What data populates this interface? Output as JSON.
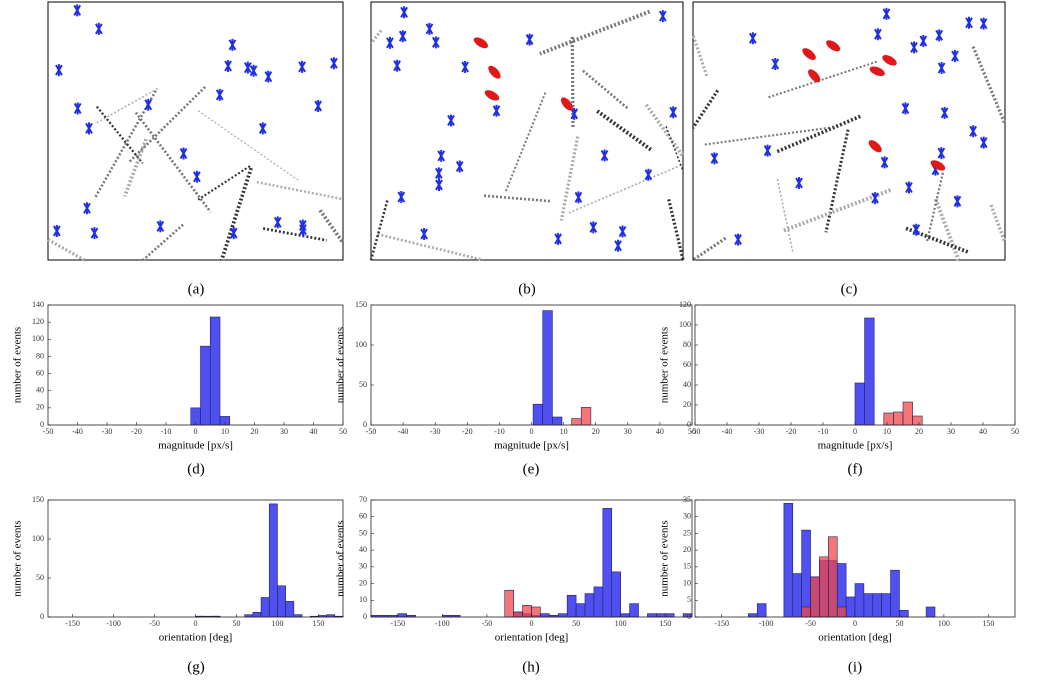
{
  "captions": [
    "(a)",
    "(b)",
    "(c)",
    "(d)",
    "(e)",
    "(f)",
    "(g)",
    "(h)",
    "(i)"
  ],
  "chart_data": [
    {
      "type": "histogram",
      "xlabel": "magnitude [px/s]",
      "ylabel": "number of events",
      "xlim": [
        -50,
        50
      ],
      "xticks": [
        -50,
        -40,
        -30,
        -20,
        -10,
        0,
        10,
        20,
        30,
        40,
        50
      ],
      "ylim": [
        0,
        140
      ],
      "yticks": [
        0,
        20,
        40,
        60,
        80,
        100,
        120,
        140
      ],
      "series": [
        {
          "color": "#5050f0",
          "bins": [
            -1.6,
            1.7,
            5,
            8.3,
            11.6
          ],
          "values": [
            20,
            92,
            126,
            10
          ]
        }
      ]
    },
    {
      "type": "histogram",
      "xlabel": "magnitude [px/s]",
      "ylabel": "number of events",
      "xlim": [
        -50,
        50
      ],
      "xticks": [
        -50,
        -40,
        -30,
        -20,
        -10,
        0,
        10,
        20,
        30,
        40,
        50
      ],
      "ylim": [
        0,
        150
      ],
      "yticks": [
        0,
        50,
        100,
        150
      ],
      "series": [
        {
          "color": "#5050f0",
          "bins": [
            0.5,
            3.5,
            6.5,
            9.5
          ],
          "values": [
            26,
            143,
            10
          ]
        },
        {
          "color": "#f04848",
          "bins": [
            12.5,
            15.5,
            18.5
          ],
          "values": [
            8,
            22
          ]
        }
      ]
    },
    {
      "type": "histogram",
      "xlabel": "magnitude [px/s]",
      "ylabel": "number of events",
      "xlim": [
        -50,
        50
      ],
      "xticks": [
        -50,
        -40,
        -30,
        -20,
        -10,
        0,
        10,
        20,
        30,
        40,
        50
      ],
      "ylim": [
        0,
        120
      ],
      "yticks": [
        0,
        20,
        40,
        60,
        80,
        100,
        120
      ],
      "series": [
        {
          "color": "#5050f0",
          "bins": [
            0,
            3,
            6
          ],
          "values": [
            42,
            107
          ]
        },
        {
          "color": "#f04848",
          "bins": [
            9,
            12,
            15,
            18,
            21
          ],
          "values": [
            12,
            13,
            23,
            9
          ]
        }
      ]
    },
    {
      "type": "histogram",
      "xlabel": "orientation [deg]",
      "ylabel": "number of events",
      "xlim": [
        -180,
        180
      ],
      "xticks": [
        -150,
        -100,
        -50,
        0,
        50,
        100,
        150
      ],
      "ylim": [
        0,
        150
      ],
      "yticks": [
        0,
        50,
        100,
        150
      ],
      "series": [
        {
          "color": "#5050f0",
          "bins": [
            0,
            10,
            20,
            30,
            40,
            50,
            60,
            70,
            80,
            90,
            100,
            110,
            120,
            130,
            140,
            150,
            160,
            170,
            180
          ],
          "values": [
            1,
            0,
            1,
            0,
            0,
            0,
            3,
            6,
            25,
            145,
            40,
            20,
            3,
            0,
            1,
            2,
            3,
            1
          ]
        },
        {
          "color": "#f04848",
          "bins": [
            0,
            10,
            20,
            30
          ],
          "values": [
            1,
            1,
            1
          ]
        }
      ]
    },
    {
      "type": "histogram",
      "xlabel": "orientation [deg]",
      "ylabel": "number of events",
      "xlim": [
        -180,
        180
      ],
      "xticks": [
        -150,
        -100,
        -50,
        0,
        50,
        100,
        150
      ],
      "ylim": [
        0,
        70
      ],
      "yticks": [
        0,
        10,
        20,
        30,
        40,
        50,
        60,
        70
      ],
      "series": [
        {
          "color": "#5050f0",
          "bins": [
            -180,
            -170,
            -160,
            -150,
            -140,
            -130,
            -120,
            -110,
            -100,
            -90,
            -80,
            -70,
            -60,
            -50,
            -40,
            -30,
            -20,
            -10,
            0,
            10,
            20,
            30,
            40,
            50,
            60,
            70,
            80,
            90,
            100,
            110,
            120,
            130,
            140,
            150,
            160,
            170,
            180
          ],
          "values": [
            1,
            1,
            1,
            2,
            1,
            0,
            0,
            0,
            1,
            1,
            0,
            0,
            0,
            0,
            0,
            0,
            3,
            2,
            1,
            2,
            1,
            2,
            13,
            8,
            14,
            18,
            65,
            27,
            2,
            8,
            0,
            2,
            2,
            2,
            0,
            2
          ]
        },
        {
          "color": "#f04848",
          "bins": [
            -30,
            -20,
            -10,
            0,
            10
          ],
          "values": [
            16,
            3,
            7,
            6
          ]
        }
      ]
    },
    {
      "type": "histogram",
      "xlabel": "orientation [deg]",
      "ylabel": "number of events",
      "xlim": [
        -180,
        180
      ],
      "xticks": [
        -150,
        -100,
        -50,
        0,
        50,
        100,
        150
      ],
      "ylim": [
        0,
        35
      ],
      "yticks": [
        0,
        5,
        10,
        15,
        20,
        25,
        30,
        35
      ],
      "series": [
        {
          "color": "#5050f0",
          "bins": [
            -120,
            -110,
            -100,
            -90,
            -80,
            -70,
            -60,
            -50,
            -40,
            -30,
            -20,
            -10,
            0,
            10,
            20,
            30,
            40,
            50,
            60,
            70,
            80,
            90
          ],
          "values": [
            1,
            4,
            0,
            0,
            34,
            13,
            26,
            12,
            17,
            17,
            16,
            6,
            10,
            7,
            7,
            7,
            14,
            2,
            0,
            0,
            3
          ]
        },
        {
          "color": "#f04848",
          "bins": [
            -60,
            -50,
            -40,
            -30,
            -20,
            -10
          ],
          "values": [
            3,
            12,
            18,
            24,
            3
          ]
        }
      ]
    }
  ]
}
